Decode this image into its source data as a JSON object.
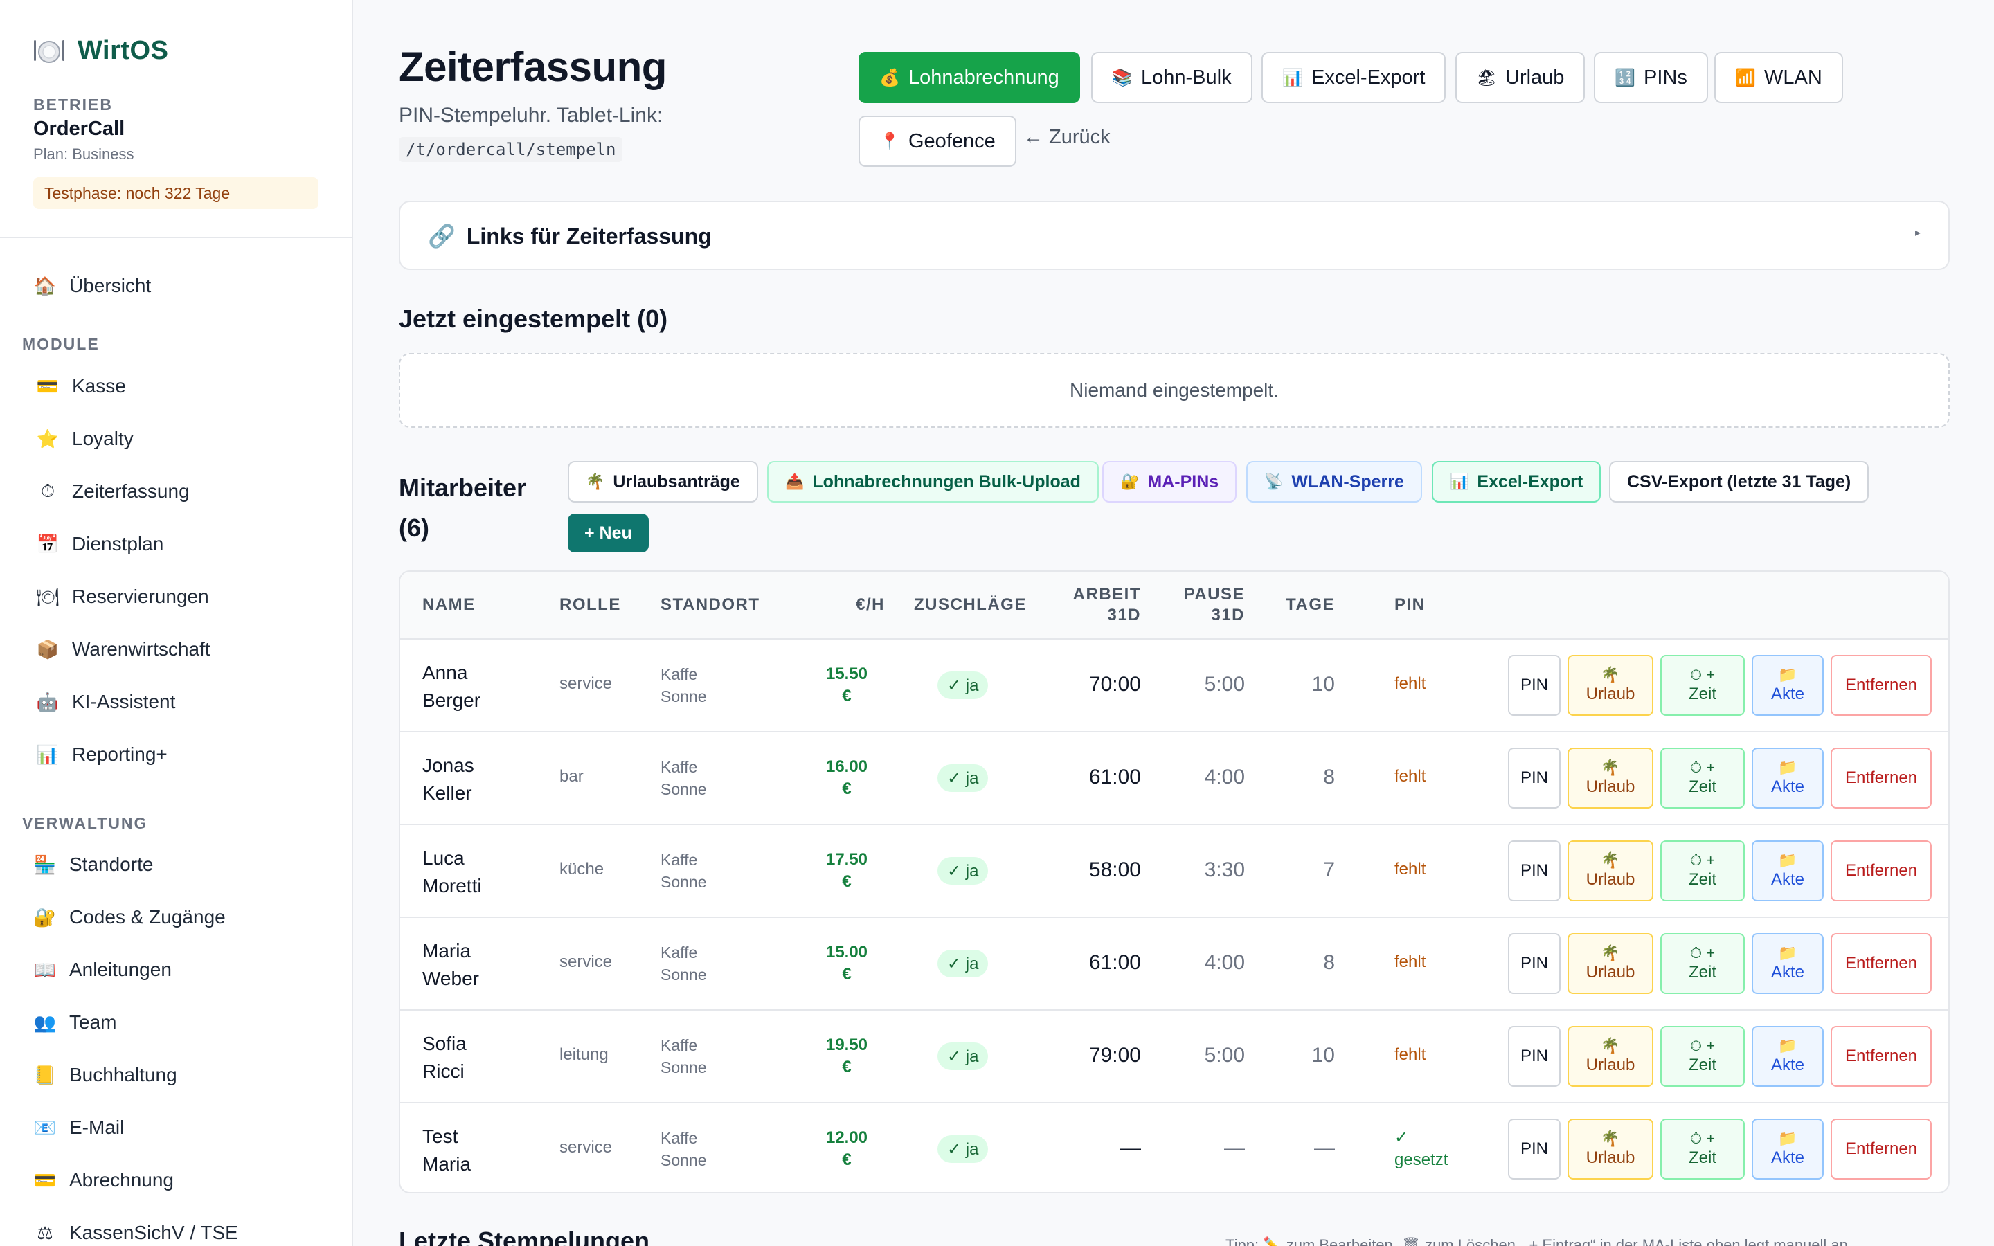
{
  "app": {
    "name": "WirtOS"
  },
  "business": {
    "label": "BETRIEB",
    "name": "OrderCall",
    "plan": "Plan: Business",
    "trial": "Testphase: noch 322 Tage"
  },
  "nav": {
    "overview": {
      "label": "Übersicht",
      "icon": "🏠"
    },
    "modules_label": "MODULE",
    "modules": [
      {
        "label": "Kasse",
        "icon": "💳"
      },
      {
        "label": "Loyalty",
        "icon": "⭐"
      },
      {
        "label": "Zeiterfassung",
        "icon": "⏱"
      },
      {
        "label": "Dienstplan",
        "icon": "📅"
      },
      {
        "label": "Reservierungen",
        "icon": "🍽"
      },
      {
        "label": "Warenwirtschaft",
        "icon": "📦"
      },
      {
        "label": "KI-Assistent",
        "icon": "🤖"
      },
      {
        "label": "Reporting+",
        "icon": "📊"
      }
    ],
    "admin_label": "VERWALTUNG",
    "admin": [
      {
        "label": "Standorte",
        "icon": "🏪"
      },
      {
        "label": "Codes & Zugänge",
        "icon": "🔐"
      },
      {
        "label": "Anleitungen",
        "icon": "📖"
      },
      {
        "label": "Team",
        "icon": "👥"
      },
      {
        "label": "Buchhaltung",
        "icon": "📒"
      },
      {
        "label": "E-Mail",
        "icon": "📧"
      },
      {
        "label": "Abrechnung",
        "icon": "💳"
      },
      {
        "label": "KassenSichV / TSE",
        "icon": "⚖"
      }
    ]
  },
  "header": {
    "title": "Zeiterfassung",
    "subtitle": "PIN-Stempeluhr. Tablet-Link:",
    "link": "/t/ordercall/stempeln",
    "buttons": [
      {
        "label": "Lohnabrechnung",
        "icon": "💰"
      },
      {
        "label": "Lohn-Bulk",
        "icon": "📚"
      },
      {
        "label": "Excel-Export",
        "icon": "📊"
      },
      {
        "label": "Urlaub",
        "icon": "🏖"
      },
      {
        "label": "PINs",
        "icon": "🔢"
      },
      {
        "label": "WLAN",
        "icon": "📶"
      },
      {
        "label": "Geofence",
        "icon": "📍"
      }
    ],
    "back": "← Zurück"
  },
  "links_card": {
    "title": "Links für Zeiterfassung",
    "icon": "🔗",
    "caret": "▸"
  },
  "clocked_in": {
    "title": "Jetzt eingestempelt (0)",
    "empty": "Niemand eingestempelt."
  },
  "employees": {
    "title_line1": "Mitarbeiter",
    "title_line2": "(6)",
    "chips": [
      {
        "label": "Urlaubsanträge",
        "icon": "🌴"
      },
      {
        "label": "Lohnabrechnungen Bulk-Upload",
        "icon": "📤"
      },
      {
        "label": "MA-PINs",
        "icon": "🔐"
      },
      {
        "label": "WLAN-Sperre",
        "icon": "📡"
      },
      {
        "label": "Excel-Export",
        "icon": "📊"
      },
      {
        "label": "CSV-Export (letzte 31 Tage)",
        "icon": ""
      }
    ],
    "new_button": "+ Neu",
    "columns": {
      "name": "NAME",
      "role": "ROLLE",
      "site": "STANDORT",
      "rate": "€/H",
      "surcharge": "ZUSCHLÄGE",
      "work_1": "ARBEIT",
      "work_2": "31D",
      "pause_1": "PAUSE",
      "pause_2": "31D",
      "days": "TAGE",
      "pin": "PIN"
    },
    "actions": {
      "pin": "PIN",
      "leave_icon": "🌴",
      "leave": "Urlaub",
      "time_icon": "⏱ +",
      "time": "Zeit",
      "file_icon": "📁",
      "file": "Akte",
      "remove": "Entfernen"
    },
    "rows": [
      {
        "first": "Anna",
        "last": "Berger",
        "role": "service",
        "site1": "Kaffe",
        "site2": "Sonne",
        "rate": "15.50",
        "currency": "€",
        "surcharge": "✓ ja",
        "work": "70:00",
        "pause": "5:00",
        "days": "10",
        "pin": "fehlt"
      },
      {
        "first": "Jonas",
        "last": "Keller",
        "role": "bar",
        "site1": "Kaffe",
        "site2": "Sonne",
        "rate": "16.00",
        "currency": "€",
        "surcharge": "✓ ja",
        "work": "61:00",
        "pause": "4:00",
        "days": "8",
        "pin": "fehlt"
      },
      {
        "first": "Luca",
        "last": "Moretti",
        "role": "küche",
        "site1": "Kaffe",
        "site2": "Sonne",
        "rate": "17.50",
        "currency": "€",
        "surcharge": "✓ ja",
        "work": "58:00",
        "pause": "3:30",
        "days": "7",
        "pin": "fehlt"
      },
      {
        "first": "Maria",
        "last": "Weber",
        "role": "service",
        "site1": "Kaffe",
        "site2": "Sonne",
        "rate": "15.00",
        "currency": "€",
        "surcharge": "✓ ja",
        "work": "61:00",
        "pause": "4:00",
        "days": "8",
        "pin": "fehlt"
      },
      {
        "first": "Sofia",
        "last": "Ricci",
        "role": "leitung",
        "site1": "Kaffe",
        "site2": "Sonne",
        "rate": "19.50",
        "currency": "€",
        "surcharge": "✓ ja",
        "work": "79:00",
        "pause": "5:00",
        "days": "10",
        "pin": "fehlt"
      },
      {
        "first": "Test",
        "last": "Maria",
        "role": "service",
        "site1": "Kaffe",
        "site2": "Sonne",
        "rate": "12.00",
        "currency": "€",
        "surcharge": "✓ ja",
        "work": "—",
        "pause": "—",
        "days": "—",
        "pin": "✓",
        "pin2": "gesetzt"
      }
    ]
  },
  "footer": {
    "title": "Letzte Stempelungen",
    "tip": "Tipp: ✏️ zum Bearbeiten, 🗑 zum Löschen. „+ Eintrag“ in der MA-Liste oben legt manuell an."
  }
}
